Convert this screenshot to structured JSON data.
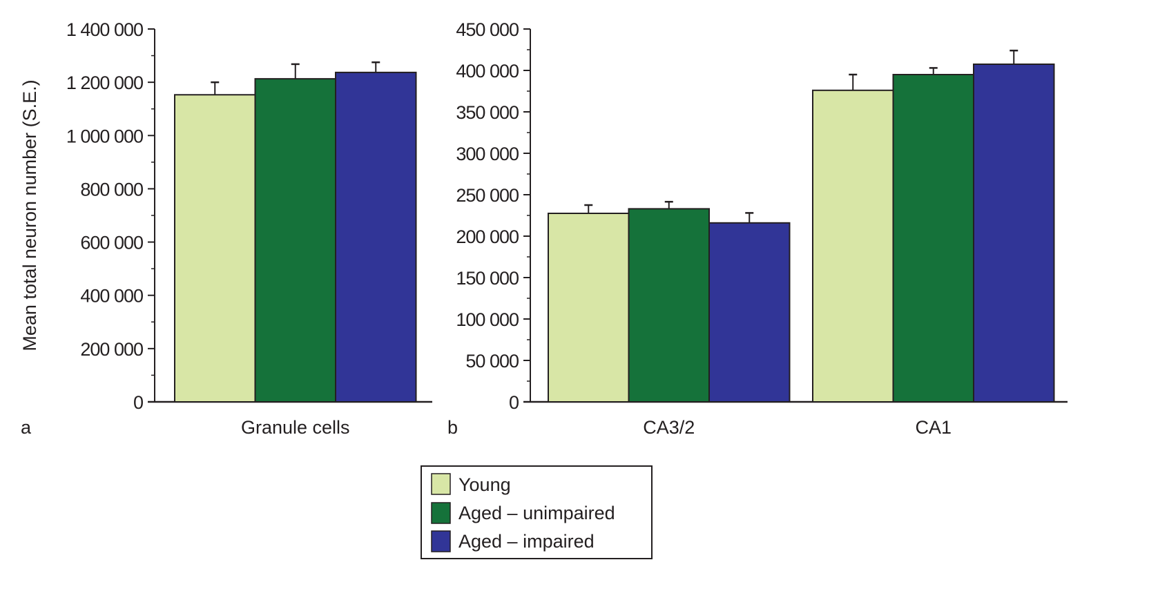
{
  "chart_data": [
    {
      "type": "bar",
      "panel": "a",
      "panel_label": "a",
      "title": "",
      "xlabel": "",
      "ylabel": "Mean total neuron number (S.E.)",
      "ylim": [
        0,
        1400000
      ],
      "yticks": [
        0,
        200000,
        400000,
        600000,
        800000,
        1000000,
        1200000,
        1400000
      ],
      "ytick_labels": [
        "0",
        "200 000",
        "400 000",
        "600 000",
        "800 000",
        "1 000 000",
        "1 200 000",
        "1 400 000"
      ],
      "minor_tick_step": 100000,
      "categories": [
        "Granule cells"
      ],
      "series": [
        {
          "name": "Young",
          "values": [
            1153000
          ],
          "errors": [
            47000
          ]
        },
        {
          "name": "Aged – unimpaired",
          "values": [
            1213000
          ],
          "errors": [
            55000
          ]
        },
        {
          "name": "Aged – impaired",
          "values": [
            1237000
          ],
          "errors": [
            38000
          ]
        }
      ],
      "grid": false
    },
    {
      "type": "bar",
      "panel": "b",
      "panel_label": "b",
      "title": "",
      "xlabel": "",
      "ylabel": "",
      "ylim": [
        0,
        450000
      ],
      "yticks": [
        0,
        50000,
        100000,
        150000,
        200000,
        250000,
        300000,
        350000,
        400000,
        450000
      ],
      "ytick_labels": [
        "0",
        "50 000",
        "100 000",
        "150 000",
        "200 000",
        "250 000",
        "300 000",
        "350 000",
        "400 000",
        "450 000"
      ],
      "minor_tick_step": 25000,
      "categories": [
        "CA3/2",
        "CA1"
      ],
      "series": [
        {
          "name": "Young",
          "values": [
            227500,
            376000
          ],
          "errors": [
            10000,
            19000
          ]
        },
        {
          "name": "Aged – unimpaired",
          "values": [
            233000,
            395000
          ],
          "errors": [
            8500,
            8000
          ]
        },
        {
          "name": "Aged – impaired",
          "values": [
            216000,
            407500
          ],
          "errors": [
            12000,
            16500
          ]
        }
      ],
      "grid": false
    }
  ],
  "legend": {
    "placement": "bottom-center",
    "items": [
      {
        "label": "Young",
        "color": "#d8e6a6"
      },
      {
        "label": "Aged – unimpaired",
        "color": "#15723a"
      },
      {
        "label": "Aged – impaired",
        "color": "#313597"
      }
    ]
  },
  "colors": {
    "axis": "#231f20",
    "bar_outline": "#231f20"
  }
}
